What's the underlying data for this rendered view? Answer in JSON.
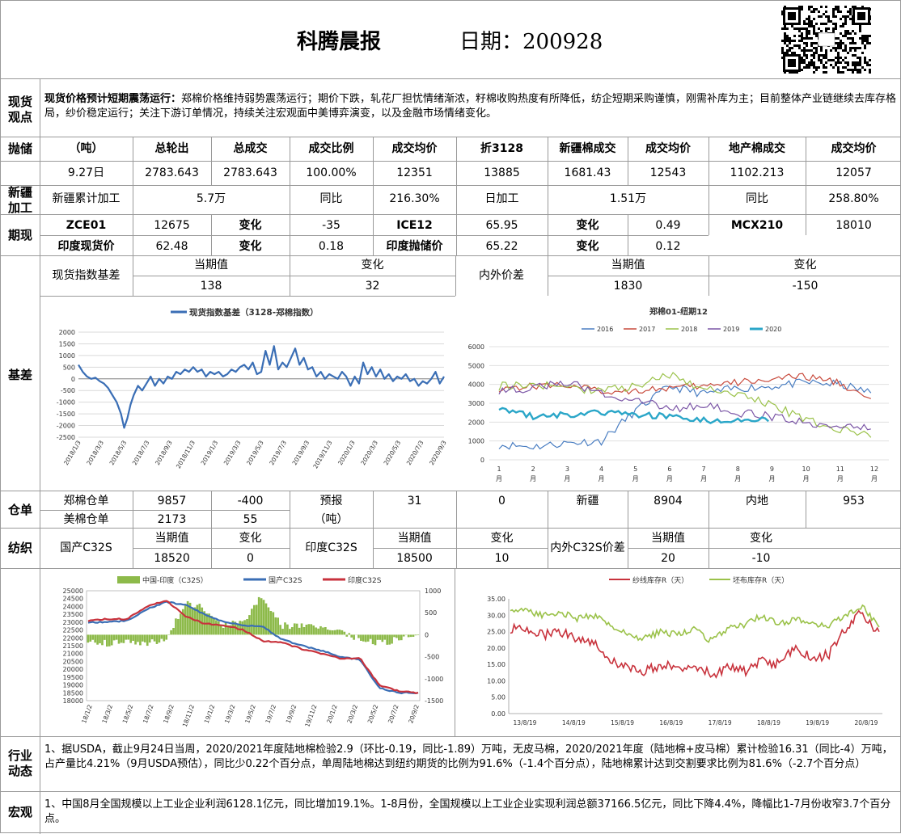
{
  "header": {
    "title": "科腾晨报",
    "date_label": "日期：200928"
  },
  "sections": {
    "view": "现货观点",
    "auction": "抛储",
    "xinjiang": "新疆加工",
    "futures": "期现",
    "basis": "基差",
    "warehouse": "仓单",
    "textile": "纺织",
    "industry": "行业动态",
    "macro": "宏观"
  },
  "view": {
    "lead": "现货价格预计短期震荡运行：",
    "body": "郑棉价格维持弱势震荡运行；期价下跌，轧花厂担忧情绪渐浓，籽棉收购热度有所降低，纺企短期采购谨慎，刚需补库为主；目前整体产业链继续去库存格局，纱价稳定运行；关注下游订单情况，持续关注宏观面中美博弈演变，以及金融市场情绪变化。"
  },
  "auction": {
    "headers": [
      "（吨）",
      "总轮出",
      "总成交",
      "成交比例",
      "成交均价",
      "折3128",
      "新疆棉成交",
      "成交均价",
      "地产棉成交",
      "成交均价"
    ],
    "row": [
      "9.27日",
      "2783.643",
      "2783.643",
      "100.00%",
      "12351",
      "13885",
      "1681.43",
      "12543",
      "1102.213",
      "12057"
    ]
  },
  "xinjiang": {
    "cum_label": "新疆累计加工",
    "cum_value": "5.7万",
    "yoy_label_1": "同比",
    "yoy_value_1": "216.30%",
    "daily_label": "日加工",
    "daily_value": "1.51万",
    "yoy_label_2": "同比",
    "yoy_value_2": "258.80%"
  },
  "futures": {
    "row1": [
      "ZCE01",
      "12675",
      "变化",
      "-35",
      "ICE12",
      "65.95",
      "变化",
      "0.49",
      "MCX210",
      "18010"
    ],
    "row2": [
      "印度现货价",
      "62.48",
      "变化",
      "0.18",
      "印度抛储价",
      "65.22",
      "变化",
      "0.12"
    ]
  },
  "basis": {
    "label1": "现货指数基差",
    "cur_label": "当期值",
    "chg_label": "变化",
    "cur_value": "138",
    "chg_value": "32",
    "label2": "内外价差",
    "cur_label2": "当期值",
    "chg_label2": "变化",
    "cur_value2": "1830",
    "chg_value2": "-150"
  },
  "warehouse": {
    "zc_label": "郑棉仓单",
    "zc_value": "9857",
    "zc_chg": "-400",
    "us_label": "美棉仓单",
    "us_value": "2173",
    "us_chg": "55",
    "forecast_label": "预报",
    "unit_label": "（吨）",
    "forecast_value": "31",
    "forecast_chg": "0",
    "xj_label": "新疆",
    "xj_value": "8904",
    "nd_label": "内地",
    "nd_value": "953"
  },
  "textile": {
    "cn_label": "国产C32S",
    "cur_label": "当期值",
    "chg_label": "变化",
    "cn_value": "18520",
    "cn_chg": "0",
    "in_label": "印度C32S",
    "in_cur_label": "当期值",
    "in_chg_label": "变化",
    "in_value": "18500",
    "in_chg": "10",
    "diff_label": "内外C32S价差",
    "diff_cur_label": "当期值",
    "diff_chg_label": "变化",
    "diff_value": "20",
    "diff_chg": "-10"
  },
  "industry": {
    "text": "1、据USDA，截止9月24日当周，2020/2021年度陆地棉检验2.9（环比-0.19，同比-1.89）万吨，无皮马棉，2020/2021年度（陆地棉+皮马棉）累计检验16.31（同比-4）万吨，占产量比4.21%（9月USDA预估），同比少0.22个百分点，单周陆地棉达到纽约期货的比例为91.6%（-1.4个百分点），陆地棉累计达到交割要求比例为81.6%（-2.7个百分点）"
  },
  "macro": {
    "text": "1、中国8月全国规模以上工业企业利润6128.1亿元，同比增加19.1%。1-8月份，全国规模以上工业企业实现利润总额37166.5亿元，同比下降4.4%，降幅比1-7月份收窄3.7个百分点。"
  },
  "icons": {
    "qr": "qr-code-icon"
  },
  "chart_data": [
    {
      "type": "line",
      "title": "",
      "series": [
        {
          "name": "现货指数基差（3128-郑棉指数）",
          "color": "#3a6eb5"
        }
      ],
      "x_ticks": [
        "2018/1/3",
        "2018/3/3",
        "2018/5/3",
        "2018/7/3",
        "2018/9/3",
        "2018/11/3",
        "2019/1/3",
        "2019/3/3",
        "2019/5/3",
        "2019/7/3",
        "2019/9/3",
        "2019/11/3",
        "2020/1/3",
        "2020/3/3",
        "2020/5/3",
        "2020/7/3",
        "2020/9/3"
      ],
      "ylim": [
        -2500,
        2000
      ],
      "y_ticks": [
        2000,
        1500,
        1000,
        500,
        0,
        -500,
        -1000,
        -1500,
        -2000,
        -2500
      ],
      "points": [
        [
          0,
          600
        ],
        [
          4,
          300
        ],
        [
          8,
          100
        ],
        [
          12,
          0
        ],
        [
          16,
          50
        ],
        [
          20,
          -100
        ],
        [
          24,
          -200
        ],
        [
          28,
          -400
        ],
        [
          32,
          -700
        ],
        [
          36,
          -1000
        ],
        [
          40,
          -1500
        ],
        [
          43,
          -2100
        ],
        [
          46,
          -1700
        ],
        [
          49,
          -1100
        ],
        [
          52,
          -700
        ],
        [
          56,
          -300
        ],
        [
          60,
          -500
        ],
        [
          64,
          -200
        ],
        [
          68,
          100
        ],
        [
          72,
          -300
        ],
        [
          76,
          0
        ],
        [
          80,
          -200
        ],
        [
          84,
          100
        ],
        [
          88,
          0
        ],
        [
          92,
          300
        ],
        [
          96,
          200
        ],
        [
          100,
          400
        ],
        [
          104,
          300
        ],
        [
          108,
          500
        ],
        [
          112,
          300
        ],
        [
          116,
          400
        ],
        [
          120,
          100
        ],
        [
          124,
          300
        ],
        [
          128,
          200
        ],
        [
          132,
          300
        ],
        [
          136,
          100
        ],
        [
          140,
          200
        ],
        [
          144,
          400
        ],
        [
          148,
          300
        ],
        [
          152,
          500
        ],
        [
          156,
          600
        ],
        [
          160,
          400
        ],
        [
          164,
          700
        ],
        [
          168,
          200
        ],
        [
          172,
          300
        ],
        [
          176,
          1200
        ],
        [
          180,
          600
        ],
        [
          184,
          1400
        ],
        [
          188,
          400
        ],
        [
          192,
          700
        ],
        [
          196,
          500
        ],
        [
          200,
          900
        ],
        [
          204,
          1300
        ],
        [
          208,
          600
        ],
        [
          212,
          900
        ],
        [
          216,
          400
        ],
        [
          220,
          500
        ],
        [
          224,
          100
        ],
        [
          228,
          300
        ],
        [
          232,
          0
        ],
        [
          236,
          200
        ],
        [
          240,
          100
        ],
        [
          244,
          0
        ],
        [
          248,
          300
        ],
        [
          252,
          100
        ],
        [
          256,
          -300
        ],
        [
          260,
          100
        ],
        [
          264,
          -200
        ],
        [
          268,
          700
        ],
        [
          272,
          200
        ],
        [
          276,
          500
        ],
        [
          280,
          100
        ],
        [
          284,
          400
        ],
        [
          288,
          0
        ],
        [
          292,
          200
        ],
        [
          296,
          -100
        ],
        [
          300,
          100
        ],
        [
          304,
          0
        ],
        [
          308,
          200
        ],
        [
          312,
          -100
        ],
        [
          316,
          0
        ],
        [
          320,
          -300
        ],
        [
          324,
          -100
        ],
        [
          328,
          -200
        ],
        [
          332,
          0
        ],
        [
          336,
          300
        ],
        [
          340,
          -200
        ],
        [
          344,
          100
        ]
      ]
    },
    {
      "type": "line",
      "title": "郑棉01-纽期12",
      "series": [
        {
          "name": "2016",
          "color": "#4a7ec2"
        },
        {
          "name": "2017",
          "color": "#c84a3c"
        },
        {
          "name": "2018",
          "color": "#9bc24a"
        },
        {
          "name": "2019",
          "color": "#7b56a6"
        },
        {
          "name": "2020",
          "color": "#2aa6c8"
        }
      ],
      "ylim": [
        0,
        6000
      ],
      "y_ticks": [
        6000,
        5000,
        4000,
        3000,
        2000,
        1000,
        0
      ],
      "x_ticks": [
        "1月",
        "2月",
        "3月",
        "4月",
        "5月",
        "6月",
        "7月",
        "8月",
        "9月",
        "10月",
        "11月",
        "12月"
      ]
    },
    {
      "type": "line",
      "title": "",
      "series": [
        {
          "name": "中国-印度（C32S）",
          "color": "#8dba4a",
          "kind": "bar",
          "axis": "right"
        },
        {
          "name": "国产C32S",
          "color": "#3a6eb5",
          "axis": "left"
        },
        {
          "name": "印度C32S",
          "color": "#c8323c",
          "axis": "left"
        }
      ],
      "ylim_left": [
        18000,
        25000
      ],
      "y_ticks_left": [
        25000,
        24500,
        24000,
        23500,
        23000,
        22500,
        22000,
        21500,
        21000,
        20500,
        20000,
        19500,
        19000,
        18500,
        18000
      ],
      "ylim_right": [
        -1500,
        1000
      ],
      "y_ticks_right": [
        1000,
        500,
        0,
        -500,
        -1000,
        -1500
      ],
      "x_ticks": [
        "18/1/2",
        "18/3/2",
        "18/5/2",
        "18/7/2",
        "18/9/2",
        "18/11/2",
        "19/1/2",
        "19/3/2",
        "19/5/2",
        "19/7/2",
        "19/9/2",
        "19/11/2",
        "20/1/2",
        "20/3/2",
        "20/5/2",
        "20/7/2",
        "20/9/2"
      ]
    },
    {
      "type": "line",
      "title": "",
      "series": [
        {
          "name": "纱线库存R（天）",
          "color": "#c8323c"
        },
        {
          "name": "坯布库存R（天）",
          "color": "#9bc24a"
        }
      ],
      "ylim": [
        0,
        35
      ],
      "y_ticks": [
        "35.00",
        "30.00",
        "25.00",
        "20.00",
        "15.00",
        "10.00",
        "5.00",
        "0.00"
      ],
      "x_ticks": [
        "13/8/19",
        "14/8/19",
        "15/8/19",
        "16/8/19",
        "17/8/19",
        "18/8/19",
        "19/8/19",
        "20/8/19"
      ]
    }
  ]
}
